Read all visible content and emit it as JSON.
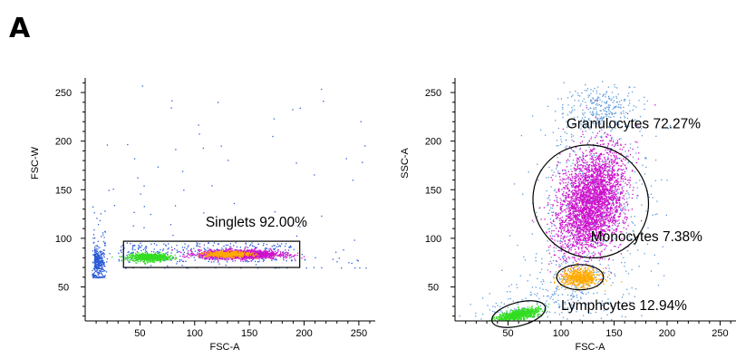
{
  "panel_label": "A",
  "colors": {
    "blue": "#2a5bd7",
    "light_blue": "#5b9bdb",
    "green": "#33dd22",
    "magenta": "#cc11cc",
    "orange": "#ffaa00"
  },
  "chart_data": [
    {
      "type": "scatter",
      "title": "",
      "xlabel": "FSC-A",
      "ylabel": "FSC-W",
      "xlim": [
        0,
        265
      ],
      "ylim": [
        15,
        265
      ],
      "xticks": [
        50,
        100,
        150,
        200,
        250
      ],
      "yticks": [
        50,
        100,
        150,
        200,
        250
      ],
      "grid": false,
      "gates": [
        {
          "shape": "rect",
          "label": "Singlets 92.00%",
          "x_range": [
            35,
            196
          ],
          "y_range": [
            70,
            97
          ]
        }
      ],
      "populations": [
        {
          "color": "blue",
          "description_points": "dense cluster near x 5-15, y 65-95 plus sparse scattered events"
        },
        {
          "color": "green",
          "x_range": [
            55,
            95
          ],
          "y_range": [
            76,
            86
          ]
        },
        {
          "color": "magenta",
          "x_range": [
            100,
            185
          ],
          "y_range": [
            78,
            90
          ]
        },
        {
          "color": "orange",
          "x_range": [
            110,
            155
          ],
          "y_range": [
            80,
            88
          ]
        }
      ]
    },
    {
      "type": "scatter",
      "title": "",
      "xlabel": "FSC-A",
      "ylabel": "SSC-A",
      "xlim": [
        0,
        265
      ],
      "ylim": [
        15,
        265
      ],
      "xticks": [
        50,
        100,
        150,
        200,
        250
      ],
      "yticks": [
        50,
        100,
        150,
        200,
        250
      ],
      "grid": false,
      "gates": [
        {
          "shape": "ellipse",
          "label": "Granulocytes 72.27%",
          "center": [
            128,
            138
          ],
          "rx": 38,
          "ry": 70,
          "angle_deg": 30
        },
        {
          "shape": "ellipse",
          "label": "Monocytes 7.38%",
          "center": [
            118,
            60
          ],
          "rx": 22,
          "ry": 13,
          "angle_deg": 0
        },
        {
          "shape": "ellipse",
          "label": "Lymphcytes 12.94%",
          "center": [
            60,
            22
          ],
          "rx": 26,
          "ry": 12,
          "angle_deg": -15
        }
      ],
      "populations": [
        {
          "color": "magenta",
          "center": [
            128,
            138
          ],
          "spread": [
            22,
            42
          ]
        },
        {
          "color": "orange",
          "center": [
            118,
            60
          ],
          "spread": [
            14,
            7
          ]
        },
        {
          "color": "green",
          "center": [
            60,
            22
          ],
          "spread": [
            16,
            5
          ]
        },
        {
          "color": "light_blue",
          "description_points": "sparse events around all gates"
        }
      ]
    }
  ]
}
